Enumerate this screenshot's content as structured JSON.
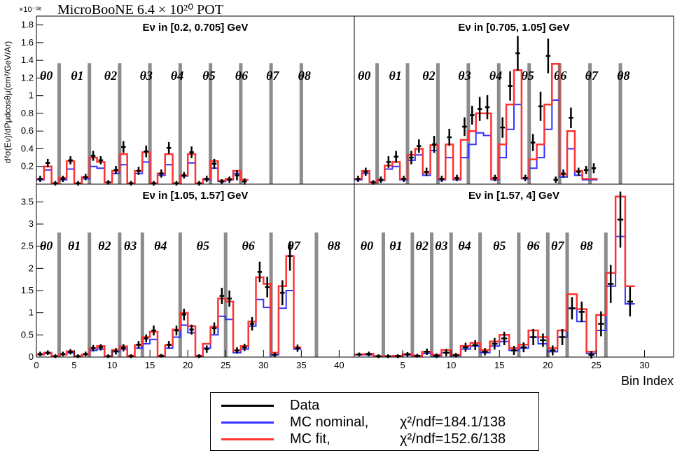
{
  "header": {
    "exponent": "×10⁻³⁶",
    "experiment": "MicroBooNE 6.4 × 10²⁰ POT"
  },
  "axes": {
    "ylabel": "d²σ(Eν)/dPμdcosθμ(cm²/GeV/Ar)",
    "xlabel": "Bin Index"
  },
  "legend": {
    "entries": [
      {
        "label": "Data",
        "color": "#000000",
        "chi": ""
      },
      {
        "label": "MC nominal,",
        "color": "#3333ff",
        "chi": "χ²/ndf=184.1/138"
      },
      {
        "label": "MC fit,",
        "color": "#ff3333",
        "chi": "χ²/ndf=152.6/138"
      }
    ]
  },
  "colors": {
    "data": "#000000",
    "nominal": "#3333ff",
    "fit": "#ff3333",
    "separator": "#8c8c8c"
  },
  "chart_data": [
    {
      "type": "step-histogram",
      "title": "Eν in [0.2, 0.705] GeV",
      "xlim": [
        0,
        42
      ],
      "ylim": [
        0,
        1.9
      ],
      "yticks": [
        0.2,
        0.4,
        0.6,
        0.8,
        1.0,
        1.2,
        1.4,
        1.6,
        1.8
      ],
      "ytick_labels": [
        "0.2",
        "0.4",
        "0.6",
        "0.8",
        "1",
        "1.2",
        "1.4",
        "1.6",
        "1.8"
      ],
      "separators": [
        3,
        7,
        11,
        15,
        19,
        23,
        27,
        31,
        35
      ],
      "theta_labels": [
        {
          "text": "θ0",
          "x": 1.3
        },
        {
          "text": "θ1",
          "x": 5.4
        },
        {
          "text": "θ2",
          "x": 9.8
        },
        {
          "text": "θ3",
          "x": 14.5
        },
        {
          "text": "θ4",
          "x": 18.6
        },
        {
          "text": "θ5",
          "x": 22.8
        },
        {
          "text": "θ6",
          "x": 27.1
        },
        {
          "text": "θ7",
          "x": 31.2
        },
        {
          "text": "θ8",
          "x": 35.4
        }
      ],
      "nominal": [
        0.05,
        0.16,
        0.01,
        0.05,
        0.17,
        0.01,
        0.06,
        0.2,
        0.18,
        0.02,
        0.12,
        0.22,
        0.01,
        0.12,
        0.25,
        0.01,
        0.1,
        0.22,
        0.01,
        0.09,
        0.24,
        0.01,
        0.05,
        0.18,
        0.03,
        0.05,
        0.12,
        0.05
      ],
      "fit": [
        0.06,
        0.2,
        0.01,
        0.07,
        0.26,
        0.01,
        0.08,
        0.3,
        0.25,
        0.02,
        0.15,
        0.34,
        0.01,
        0.15,
        0.36,
        0.01,
        0.12,
        0.34,
        0.01,
        0.1,
        0.34,
        0.01,
        0.06,
        0.26,
        0.04,
        0.06,
        0.15,
        0.05
      ],
      "data": [
        0.06,
        0.24,
        0.01,
        0.06,
        0.27,
        0.01,
        0.08,
        0.32,
        0.27,
        0.02,
        0.16,
        0.42,
        0.01,
        0.15,
        0.37,
        0.01,
        0.12,
        0.41,
        0.01,
        0.1,
        0.36,
        0.01,
        0.06,
        0.23,
        0.03,
        0.05,
        0.1,
        0.03
      ],
      "data_err": [
        0.02,
        0.03,
        0.01,
        0.02,
        0.03,
        0.01,
        0.02,
        0.04,
        0.03,
        0.01,
        0.03,
        0.05,
        0.01,
        0.03,
        0.05,
        0.01,
        0.03,
        0.05,
        0.01,
        0.02,
        0.05,
        0.01,
        0.02,
        0.04,
        0.01,
        0.02,
        0.04,
        0.02
      ]
    },
    {
      "type": "step-histogram",
      "title": "Eν in [0.705, 1.05] GeV",
      "xlim": [
        0,
        42
      ],
      "ylim": [
        0,
        1.9
      ],
      "separators": [
        3,
        7,
        11,
        15,
        19,
        23,
        27,
        31,
        35
      ],
      "theta_labels": [
        {
          "text": "θ0",
          "x": 1.3
        },
        {
          "text": "θ1",
          "x": 5.4
        },
        {
          "text": "θ2",
          "x": 9.8
        },
        {
          "text": "θ3",
          "x": 14.5
        },
        {
          "text": "θ4",
          "x": 18.6
        },
        {
          "text": "θ5",
          "x": 22.8
        },
        {
          "text": "θ6",
          "x": 27.1
        },
        {
          "text": "θ7",
          "x": 31.2
        },
        {
          "text": "θ8",
          "x": 35.4
        }
      ],
      "nominal": [
        0.05,
        0.12,
        0.02,
        0.04,
        0.17,
        0.2,
        0.05,
        0.27,
        0.33,
        0.1,
        0.38,
        0.05,
        0.3,
        0.05,
        0.3,
        0.45,
        0.58,
        0.55,
        0.05,
        0.3,
        0.62,
        0.9,
        0.06,
        0.18,
        0.3,
        0.62,
        0.95,
        0.08,
        0.4,
        0.1,
        0.05,
        0.05
      ],
      "fit": [
        0.06,
        0.15,
        0.02,
        0.05,
        0.21,
        0.25,
        0.06,
        0.33,
        0.4,
        0.13,
        0.44,
        0.06,
        0.45,
        0.06,
        0.5,
        0.6,
        0.8,
        0.8,
        0.06,
        0.45,
        0.9,
        1.29,
        0.07,
        0.28,
        0.45,
        0.9,
        1.36,
        0.11,
        0.6,
        0.15,
        0.06,
        0.06
      ],
      "data": [
        0.06,
        0.14,
        0.02,
        0.05,
        0.25,
        0.31,
        0.06,
        0.3,
        0.43,
        0.14,
        0.45,
        0.06,
        0.53,
        0.07,
        0.65,
        0.78,
        0.85,
        0.87,
        0.07,
        0.64,
        1.11,
        1.48,
        0.07,
        0.47,
        0.88,
        1.45,
        0.05,
        0.12,
        0.75,
        0.14,
        0.16,
        0.18
      ],
      "data_err": [
        0.02,
        0.03,
        0.01,
        0.02,
        0.05,
        0.05,
        0.02,
        0.06,
        0.06,
        0.03,
        0.08,
        0.02,
        0.08,
        0.02,
        0.09,
        0.09,
        0.12,
        0.12,
        0.02,
        0.1,
        0.15,
        0.18,
        0.02,
        0.08,
        0.15,
        0.18,
        0.02,
        0.03,
        0.1,
        0.03,
        0.03,
        0.04
      ]
    },
    {
      "type": "step-histogram",
      "title": "Eν in [1.05, 1.57] GeV",
      "xlim": [
        0,
        42
      ],
      "ylim": [
        0,
        3.9
      ],
      "yticks": [
        0.5,
        1.0,
        1.5,
        2.0,
        2.5,
        3.0,
        3.5
      ],
      "ytick_labels": [
        "0.5",
        "1",
        "1.5",
        "2",
        "2.5",
        "3",
        "3.5"
      ],
      "xticks": [
        0,
        5,
        10,
        15,
        20,
        25,
        30,
        35,
        40
      ],
      "separators": [
        3,
        7,
        11,
        14,
        19,
        25,
        31,
        37
      ],
      "theta_labels": [
        {
          "text": "θ0",
          "x": 1.3
        },
        {
          "text": "θ1",
          "x": 5.0
        },
        {
          "text": "θ2",
          "x": 9.0
        },
        {
          "text": "θ3",
          "x": 12.4
        },
        {
          "text": "θ4",
          "x": 16.4
        },
        {
          "text": "θ5",
          "x": 22.0
        },
        {
          "text": "θ6",
          "x": 28.0
        },
        {
          "text": "θ7",
          "x": 34.0
        },
        {
          "text": "θ8",
          "x": 39.3
        }
      ],
      "nominal": [
        0.05,
        0.08,
        0.02,
        0.05,
        0.1,
        0.02,
        0.05,
        0.15,
        0.18,
        0.02,
        0.12,
        0.18,
        0.02,
        0.2,
        0.3,
        0.4,
        0.02,
        0.2,
        0.45,
        0.72,
        0.55,
        0.02,
        0.2,
        0.5,
        0.92,
        0.85,
        0.1,
        0.18,
        0.7,
        1.3,
        1.12,
        0.05,
        1.1,
        1.5,
        0.18
      ],
      "fit": [
        0.06,
        0.1,
        0.02,
        0.06,
        0.13,
        0.02,
        0.06,
        0.2,
        0.25,
        0.02,
        0.16,
        0.24,
        0.03,
        0.27,
        0.45,
        0.57,
        0.03,
        0.27,
        0.62,
        1.0,
        0.7,
        0.03,
        0.3,
        0.68,
        1.32,
        1.25,
        0.15,
        0.25,
        0.8,
        1.8,
        1.65,
        0.1,
        1.6,
        2.28,
        0.22
      ],
      "data": [
        0.07,
        0.1,
        0.02,
        0.07,
        0.12,
        0.02,
        0.07,
        0.2,
        0.22,
        0.02,
        0.13,
        0.21,
        0.02,
        0.28,
        0.42,
        0.6,
        0.03,
        0.28,
        0.6,
        0.96,
        0.62,
        0.02,
        0.18,
        0.65,
        1.38,
        1.32,
        0.15,
        0.22,
        0.75,
        1.92,
        1.58,
        0.05,
        1.45,
        2.28,
        0.2
      ],
      "data_err": [
        0.02,
        0.02,
        0.01,
        0.02,
        0.03,
        0.01,
        0.02,
        0.04,
        0.04,
        0.01,
        0.04,
        0.05,
        0.01,
        0.05,
        0.06,
        0.08,
        0.01,
        0.05,
        0.08,
        0.1,
        0.08,
        0.01,
        0.05,
        0.1,
        0.15,
        0.15,
        0.04,
        0.05,
        0.12,
        0.2,
        0.2,
        0.02,
        0.25,
        0.3,
        0.05
      ]
    },
    {
      "type": "step-histogram",
      "title": "Eν in [1.57, 4] GeV",
      "xlim": [
        0,
        33
      ],
      "ylim": [
        0,
        3.9
      ],
      "xticks": [
        5,
        10,
        15,
        20,
        25,
        30
      ],
      "separators": [
        3,
        6,
        8,
        10,
        13,
        17,
        20,
        22,
        26
      ],
      "theta_labels": [
        {
          "text": "θ0",
          "x": 1.3
        },
        {
          "text": "θ1",
          "x": 4.3
        },
        {
          "text": "θ2",
          "x": 7.0
        },
        {
          "text": "θ3",
          "x": 9.0
        },
        {
          "text": "θ4",
          "x": 11.4
        },
        {
          "text": "θ5",
          "x": 15.0
        },
        {
          "text": "θ6",
          "x": 18.5
        },
        {
          "text": "θ7",
          "x": 21.0
        },
        {
          "text": "θ8",
          "x": 24.0
        }
      ],
      "nominal": [
        0.05,
        0.05,
        0.02,
        0.02,
        0.02,
        0.05,
        0.02,
        0.08,
        0.03,
        0.1,
        0.03,
        0.18,
        0.25,
        0.1,
        0.25,
        0.35,
        0.15,
        0.2,
        0.45,
        0.3,
        0.12,
        0.45,
        1.1,
        0.8,
        0.08,
        0.6,
        1.6,
        2.72,
        1.2
      ],
      "fit": [
        0.06,
        0.07,
        0.02,
        0.02,
        0.03,
        0.07,
        0.03,
        0.12,
        0.05,
        0.16,
        0.05,
        0.25,
        0.32,
        0.16,
        0.35,
        0.5,
        0.2,
        0.28,
        0.6,
        0.45,
        0.2,
        0.6,
        1.42,
        1.08,
        0.12,
        0.95,
        1.9,
        3.62,
        1.6
      ],
      "data": [
        0.06,
        0.07,
        0.02,
        0.02,
        0.02,
        0.06,
        0.03,
        0.12,
        0.03,
        0.1,
        0.04,
        0.22,
        0.27,
        0.12,
        0.3,
        0.42,
        0.15,
        0.22,
        0.45,
        0.38,
        0.15,
        0.45,
        1.1,
        1.02,
        0.05,
        0.75,
        1.65,
        3.1,
        1.25
      ],
      "data_err": [
        0.01,
        0.02,
        0.01,
        0.01,
        0.01,
        0.02,
        0.01,
        0.04,
        0.02,
        0.05,
        0.02,
        0.07,
        0.08,
        0.05,
        0.1,
        0.12,
        0.07,
        0.08,
        0.15,
        0.12,
        0.08,
        0.15,
        0.22,
        0.2,
        0.05,
        0.25,
        0.4,
        0.6,
        0.3
      ]
    }
  ]
}
